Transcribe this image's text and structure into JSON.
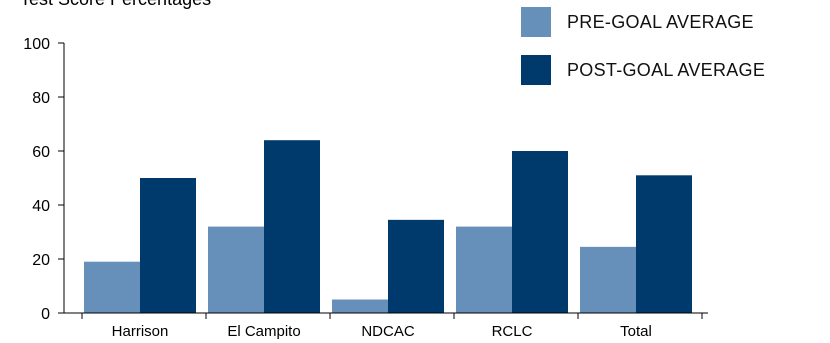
{
  "chart_data": {
    "type": "bar",
    "title": "Test Score Percentages",
    "categories": [
      "Harrison",
      "El Campito",
      "NDCAC",
      "RCLC",
      "Total"
    ],
    "series": [
      {
        "name": "PRE-GOAL AVERAGE",
        "color": "#6690BA",
        "values": [
          19,
          32,
          5,
          32,
          24.5
        ]
      },
      {
        "name": "POST-GOAL AVERAGE",
        "color": "#003A6C",
        "values": [
          50,
          64,
          34.5,
          60,
          51
        ]
      }
    ],
    "ylim": [
      0,
      100
    ],
    "yticks": [
      0,
      20,
      40,
      60,
      80,
      100
    ],
    "xlabel": "",
    "ylabel": "",
    "grid": false,
    "legend": "top-right"
  }
}
